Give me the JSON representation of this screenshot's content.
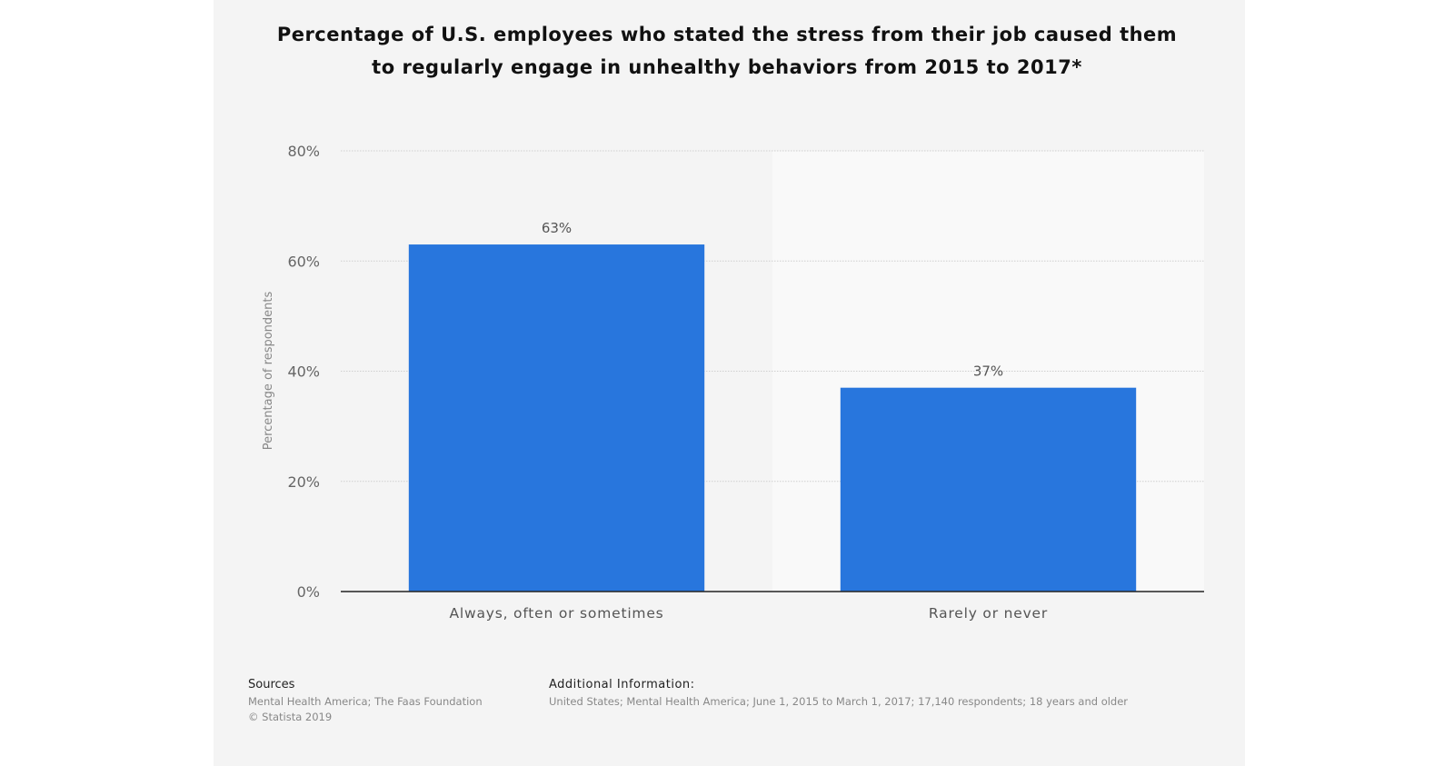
{
  "chart_data": {
    "type": "bar",
    "title": "Percentage of U.S. employees who stated the stress from their job caused them to regularly engage in unhealthy behaviors from 2015 to 2017*",
    "categories": [
      "Always, often or sometimes",
      "Rarely or never"
    ],
    "values": [
      63,
      37
    ],
    "data_labels": [
      "63%",
      "37%"
    ],
    "xlabel": "",
    "ylabel": "Percentage of respondents",
    "ylim": [
      0,
      80
    ],
    "yticks": [
      0,
      20,
      40,
      60,
      80
    ],
    "ytick_labels": [
      "0%",
      "20%",
      "40%",
      "60%",
      "80%"
    ],
    "grid": true,
    "bar_color": "#2876dd"
  },
  "footer": {
    "sources_heading": "Sources",
    "sources_text": "Mental Health America; The Faas Foundation",
    "copyright": "© Statista 2019",
    "info_heading": "Additional Information:",
    "info_text": "United States; Mental Health America; June 1, 2015 to March 1, 2017; 17,140 respondents; 18 years and older"
  }
}
